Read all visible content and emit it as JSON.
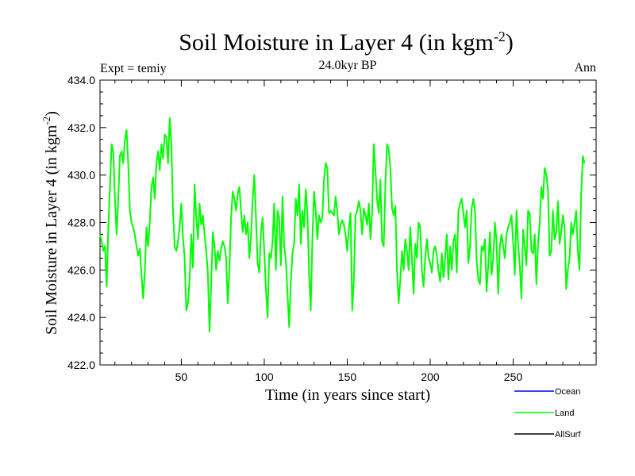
{
  "chart_data": {
    "type": "line",
    "title": "Soil Moisture in Layer 4 (in kgm",
    "title_sup": "-2",
    "title_close": ")",
    "subtitle_left": "Expt = temiy",
    "subtitle_center": "24.0kyr BP",
    "subtitle_right": "Ann",
    "xlabel": "Time (in years since start)",
    "ylabel": "Soil Moisture in Layer 4 (in kgm",
    "ylabel_sup": "-2",
    "ylabel_close": ")",
    "xlim": [
      1,
      300
    ],
    "ylim": [
      422,
      434
    ],
    "xticks": [
      50,
      100,
      150,
      200,
      250
    ],
    "xtick_labels": [
      "50",
      "100",
      "150",
      "200",
      "250"
    ],
    "yticks": [
      422,
      424,
      426,
      428,
      430,
      432,
      434
    ],
    "ytick_labels": [
      "422.0",
      "424.0",
      "426.0",
      "428.0",
      "430.0",
      "432.0",
      "434.0"
    ],
    "legend": [
      {
        "name": "Ocean",
        "color": "#0000ff"
      },
      {
        "name": "Land",
        "color": "#00ff00"
      },
      {
        "name": "AllSurf",
        "color": "#000000"
      }
    ],
    "series": [
      {
        "name": "Land",
        "color": "#00ff00",
        "x_start": 1,
        "x_step": 1,
        "values": [
          427.5,
          427.2,
          426.8,
          427.0,
          425.3,
          427.8,
          429.5,
          431.3,
          431.0,
          429.0,
          427.5,
          429.0,
          430.8,
          431.0,
          430.5,
          431.5,
          431.9,
          430.5,
          428.5,
          428.0,
          427.8,
          427.5,
          427.0,
          426.6,
          426.9,
          425.8,
          424.8,
          425.9,
          427.8,
          427.0,
          428.0,
          429.5,
          429.9,
          429.0,
          430.5,
          431.0,
          430.2,
          431.3,
          430.7,
          431.7,
          431.6,
          430.5,
          432.4,
          431.3,
          428.5,
          427.0,
          426.8,
          427.2,
          427.8,
          428.8,
          427.4,
          426.5,
          424.3,
          424.6,
          425.6,
          427.5,
          426.1,
          429.6,
          428.2,
          427.3,
          428.8,
          427.9,
          428.3,
          427.5,
          426.8,
          425.9,
          423.4,
          425.4,
          427.6,
          427.0,
          426.0,
          426.8,
          426.4,
          426.9,
          427.2,
          427.0,
          426.5,
          424.6,
          426.0,
          428.2,
          429.3,
          429.0,
          428.5,
          429.2,
          429.5,
          428.5,
          427.6,
          428.3,
          427.5,
          428.0,
          426.5,
          427.4,
          429.0,
          430.0,
          428.2,
          426.3,
          425.9,
          427.6,
          428.2,
          426.8,
          425.2,
          424.0,
          426.7,
          426.5,
          427.2,
          428.8,
          426.0,
          428.5,
          428.2,
          426.2,
          429.1,
          427.0,
          426.4,
          425.0,
          423.6,
          425.5,
          426.7,
          427.1,
          429.0,
          428.3,
          429.6,
          427.1,
          428.5,
          427.8,
          429.4,
          428.4,
          425.9,
          424.3,
          427.3,
          429.3,
          428.5,
          427.3,
          428.3,
          428.0,
          428.2,
          429.8,
          430.5,
          430.3,
          428.4,
          428.5,
          428.4,
          428.3,
          429.1,
          428.5,
          427.5,
          427.9,
          428.1,
          427.9,
          427.5,
          426.8,
          427.8,
          428.4,
          424.3,
          425.6,
          428.3,
          428.5,
          428.9,
          428.5,
          427.5,
          428.6,
          428.3,
          427.9,
          428.8,
          427.3,
          428.4,
          431.3,
          430.2,
          429.0,
          428.4,
          429.8,
          427.2,
          427.0,
          429.6,
          431.3,
          431.1,
          430.3,
          428.6,
          428.3,
          428.7,
          426.0,
          424.6,
          425.6,
          426.8,
          426.0,
          427.3,
          426.8,
          426.0,
          427.8,
          426.5,
          425.0,
          427.1,
          426.5,
          428.0,
          427.8,
          426.0,
          425.3,
          426.5,
          427.3,
          426.5,
          426.3,
          425.9,
          426.8,
          427.0,
          426.6,
          426.0,
          425.5,
          426.7,
          425.7,
          426.5,
          427.5,
          425.6,
          427.0,
          426.0,
          427.2,
          427.5,
          425.9,
          428.5,
          428.8,
          429.0,
          428.4,
          427.8,
          428.5,
          426.3,
          427.0,
          428.6,
          429.0,
          428.5,
          426.4,
          425.6,
          425.4,
          427.0,
          426.8,
          427.3,
          425.1,
          426.2,
          427.6,
          425.8,
          426.5,
          428.0,
          427.2,
          425.0,
          427.0,
          427.5,
          427.0,
          426.5,
          427.5,
          427.8,
          428.0,
          428.3,
          427.2,
          425.8,
          428.5,
          427.1,
          426.2,
          424.8,
          427.7,
          427.0,
          426.2,
          428.5,
          428.4,
          426.8,
          426.7,
          427.5,
          425.4,
          427.1,
          428.0,
          429.5,
          429.0,
          430.3,
          430.0,
          429.4,
          426.6,
          426.8,
          428.5,
          427.3,
          427.6,
          428.9,
          427.1,
          427.6,
          428.3,
          427.8,
          425.2,
          426.0,
          426.5,
          428.0,
          427.5,
          428.0,
          428.5,
          426.8,
          426.0,
          429.2,
          430.8,
          430.5
        ]
      }
    ]
  }
}
